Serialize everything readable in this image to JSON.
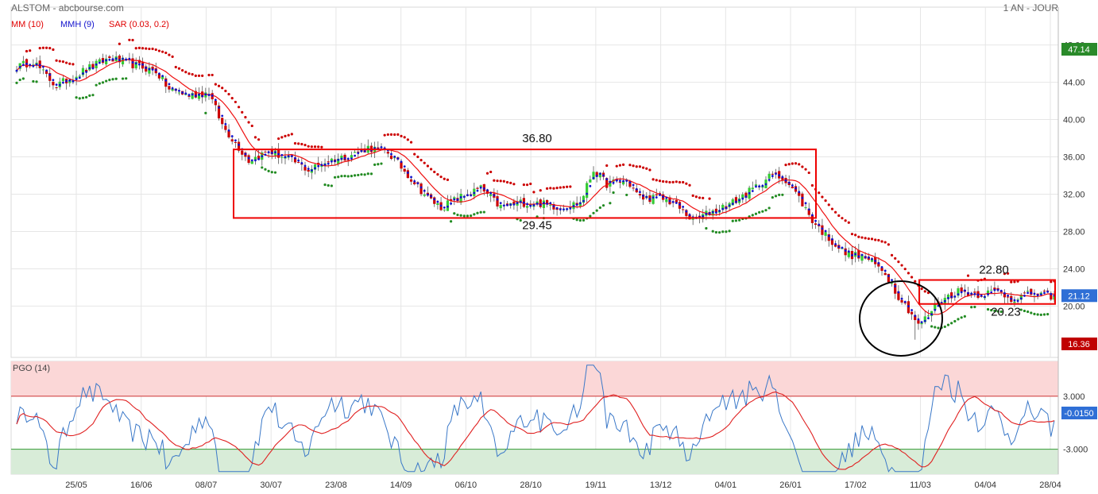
{
  "header": {
    "title": "ALSTOM - abcbourse.com",
    "period": "1 AN - JOUR"
  },
  "legend": {
    "mm": "MM (10)",
    "mmh": "MMH (9)",
    "sar": "SAR (0.03, 0.2)",
    "pgo": "PGO (14)"
  },
  "colors": {
    "candle_up": "#33cc33",
    "candle_down": "#cc0000",
    "mm": "#ee1111",
    "mmh": "#1111cc",
    "sar_above": "#cc0000",
    "sar_below": "#228b22",
    "pgo_line": "#3a78c8",
    "pgo_signal": "#e02020",
    "overbought_fill": "#fbd7d7",
    "oversold_fill": "#d8ecd8",
    "annotation": "#ee0000",
    "circle": "#000000",
    "last_price_badge": "#2f6fd6",
    "high_badge": "#2a8a2a",
    "low_badge": "#c00000"
  },
  "chart_data": [
    {
      "type": "candlestick",
      "name": "price",
      "ylim": [
        14.5,
        49.5
      ],
      "yticks": [
        "48.00",
        "44.00",
        "40.00",
        "36.00",
        "32.00",
        "28.00",
        "24.00",
        "20.00"
      ],
      "ytick_values": [
        48,
        44,
        40,
        36,
        32,
        28,
        24,
        20
      ],
      "x_ticks": [
        "25/05",
        "16/06",
        "08/07",
        "30/07",
        "23/08",
        "14/09",
        "06/10",
        "28/10",
        "19/11",
        "13/12",
        "04/01",
        "26/01",
        "17/02",
        "11/03",
        "04/04",
        "28/04"
      ],
      "n_sessions": 258,
      "close_anchors": [
        [
          0,
          45.6
        ],
        [
          5,
          46.3
        ],
        [
          8,
          45.0
        ],
        [
          12,
          43.6
        ],
        [
          20,
          45.2
        ],
        [
          28,
          46.6
        ],
        [
          36,
          45.8
        ],
        [
          42,
          45.2
        ],
        [
          46,
          43.2
        ],
        [
          52,
          42.6
        ],
        [
          58,
          42.9
        ],
        [
          62,
          39.4
        ],
        [
          66,
          37.5
        ],
        [
          70,
          35.6
        ],
        [
          76,
          36.6
        ],
        [
          82,
          35.8
        ],
        [
          88,
          34.6
        ],
        [
          94,
          35.6
        ],
        [
          100,
          36.1
        ],
        [
          106,
          37.0
        ],
        [
          112,
          36.5
        ],
        [
          118,
          34.1
        ],
        [
          124,
          31.6
        ],
        [
          128,
          30.6
        ],
        [
          134,
          31.7
        ],
        [
          140,
          32.6
        ],
        [
          146,
          30.6
        ],
        [
          152,
          31.1
        ],
        [
          158,
          31.0
        ],
        [
          164,
          30.6
        ],
        [
          170,
          31.1
        ],
        [
          174,
          34.6
        ],
        [
          178,
          33.1
        ],
        [
          184,
          33.5
        ],
        [
          188,
          31.6
        ],
        [
          194,
          31.6
        ],
        [
          198,
          31.1
        ],
        [
          204,
          29.2
        ],
        [
          210,
          30.2
        ],
        [
          216,
          31.1
        ],
        [
          222,
          32.5
        ],
        [
          228,
          34.1
        ],
        [
          232,
          33.6
        ],
        [
          236,
          31.6
        ],
        [
          240,
          29.2
        ],
        [
          244,
          27.6
        ],
        [
          250,
          25.6
        ],
        [
          256,
          25.2
        ],
        [
          262,
          23.6
        ],
        [
          266,
          21.1
        ],
        [
          270,
          19.2
        ],
        [
          272,
          17.9
        ],
        [
          274,
          18.6
        ],
        [
          278,
          20.5
        ],
        [
          284,
          21.6
        ],
        [
          290,
          21.3
        ],
        [
          296,
          21.6
        ],
        [
          300,
          20.8
        ],
        [
          306,
          21.3
        ],
        [
          312,
          21.12
        ]
      ],
      "last_price": "21.12",
      "extreme_high": "47.14",
      "extreme_low": "16.36",
      "annotations": {
        "range_top": "36.80",
        "range_bottom": "29.45",
        "range2_top": "22.80",
        "range2_bottom": "20.23"
      }
    },
    {
      "type": "line",
      "name": "PGO (14)",
      "ylim": [
        -4.2,
        4.6
      ],
      "yticks": [
        "3.000",
        "-3.000"
      ],
      "ytick_values": [
        3,
        -3
      ],
      "overbought": 3,
      "oversold": -3,
      "last_value": "-0.0150"
    }
  ]
}
